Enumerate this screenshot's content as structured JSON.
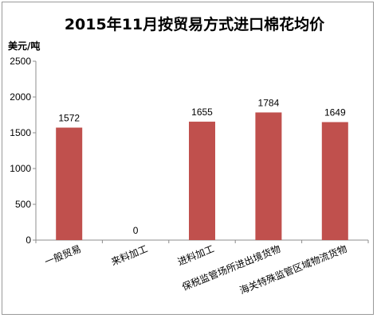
{
  "chart_data": {
    "type": "bar",
    "title": "2015年11月按贸易方式进口棉花均价",
    "ylabel": "美元/吨",
    "xlabel": "",
    "ylim": [
      0,
      2500
    ],
    "yticks": [
      0,
      500,
      1000,
      1500,
      2000,
      2500
    ],
    "categories": [
      "一般贸易",
      "来料加工",
      "进料加工",
      "保税监管场所进出境货物",
      "海关特殊监管区域物流货物"
    ],
    "values": [
      1572,
      0,
      1655,
      1784,
      1649
    ],
    "data_labels": [
      "1572",
      "0",
      "1655",
      "1784",
      "1649"
    ],
    "bar_color": "#c0504d",
    "grid": false,
    "legend": "none"
  }
}
